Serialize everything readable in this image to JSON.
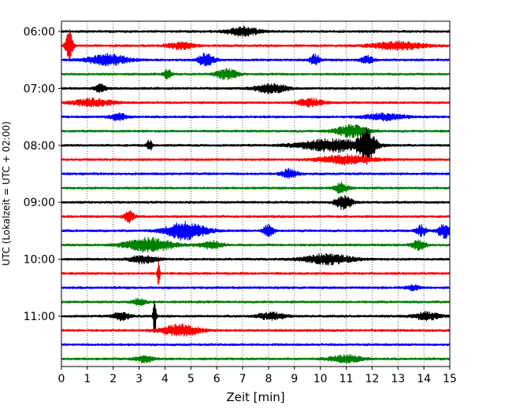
{
  "chart_data": {
    "type": "line",
    "subtype": "helicorder",
    "xlabel": "Zeit  [min]",
    "ylabel": "UTC (Lokalzeit = UTC + 02:00)",
    "xlim": [
      0,
      15
    ],
    "x_ticks": [
      0,
      1,
      2,
      3,
      4,
      5,
      6,
      7,
      8,
      9,
      10,
      11,
      12,
      13,
      14,
      15
    ],
    "x_grid": true,
    "x_grid_style": "dotted",
    "y_tick_labels": [
      "06:00",
      "07:00",
      "08:00",
      "09:00",
      "10:00",
      "11:00"
    ],
    "trace_interval_min": 15,
    "trace_colors": [
      "#000000",
      "#ff0000",
      "#0000ff",
      "#008000"
    ],
    "traces": [
      {
        "start": "06:00",
        "color": "#000000",
        "events": [
          [
            7.0,
            0.35,
            1.2
          ]
        ]
      },
      {
        "start": "06:15",
        "color": "#ff0000",
        "events": [
          [
            0.3,
            1.4,
            0.25
          ],
          [
            13.0,
            0.3,
            2.0
          ],
          [
            4.6,
            0.25,
            1.0
          ]
        ]
      },
      {
        "start": "06:30",
        "color": "#0000ff",
        "events": [
          [
            1.8,
            0.45,
            1.5
          ],
          [
            5.6,
            0.55,
            0.6
          ],
          [
            9.8,
            0.4,
            0.4
          ],
          [
            11.8,
            0.3,
            0.5
          ]
        ]
      },
      {
        "start": "06:45",
        "color": "#008000",
        "events": [
          [
            4.1,
            0.4,
            0.3
          ],
          [
            6.4,
            0.4,
            0.8
          ]
        ]
      },
      {
        "start": "07:00",
        "color": "#000000",
        "events": [
          [
            1.5,
            0.35,
            0.4
          ],
          [
            8.1,
            0.35,
            1.2
          ]
        ]
      },
      {
        "start": "07:15",
        "color": "#ff0000",
        "events": [
          [
            1.2,
            0.3,
            1.5
          ],
          [
            9.6,
            0.3,
            1.0
          ]
        ]
      },
      {
        "start": "07:30",
        "color": "#0000ff",
        "events": [
          [
            2.2,
            0.3,
            0.6
          ],
          [
            12.5,
            0.25,
            1.5
          ]
        ]
      },
      {
        "start": "07:45",
        "color": "#008000",
        "events": [
          [
            11.2,
            0.45,
            1.2
          ]
        ]
      },
      {
        "start": "08:00",
        "color": "#000000",
        "events": [
          [
            3.4,
            0.45,
            0.2
          ],
          [
            10.5,
            0.5,
            2.5
          ],
          [
            11.8,
            1.3,
            0.6
          ]
        ]
      },
      {
        "start": "08:15",
        "color": "#ff0000",
        "events": [
          [
            11.0,
            0.35,
            2.0
          ]
        ]
      },
      {
        "start": "08:30",
        "color": "#0000ff",
        "events": [
          [
            8.8,
            0.35,
            0.6
          ]
        ]
      },
      {
        "start": "08:45",
        "color": "#008000",
        "events": [
          [
            10.8,
            0.45,
            0.5
          ]
        ]
      },
      {
        "start": "09:00",
        "color": "#000000",
        "events": [
          [
            10.9,
            0.55,
            0.6
          ]
        ]
      },
      {
        "start": "09:15",
        "color": "#ff0000",
        "events": [
          [
            2.6,
            0.45,
            0.4
          ]
        ]
      },
      {
        "start": "09:30",
        "color": "#0000ff",
        "events": [
          [
            4.8,
            0.7,
            1.5
          ],
          [
            8.0,
            0.5,
            0.4
          ],
          [
            14.8,
            0.6,
            0.5
          ],
          [
            13.9,
            0.4,
            0.4
          ]
        ]
      },
      {
        "start": "09:45",
        "color": "#008000",
        "events": [
          [
            3.4,
            0.55,
            1.8
          ],
          [
            5.8,
            0.3,
            0.8
          ],
          [
            13.8,
            0.4,
            0.5
          ]
        ]
      },
      {
        "start": "10:00",
        "color": "#000000",
        "events": [
          [
            3.2,
            0.3,
            1.0
          ],
          [
            10.3,
            0.4,
            1.8
          ]
        ]
      },
      {
        "start": "10:15",
        "color": "#ff0000",
        "events": [
          [
            3.75,
            1.0,
            0.1
          ]
        ]
      },
      {
        "start": "10:30",
        "color": "#0000ff",
        "events": [
          [
            13.6,
            0.2,
            0.5
          ]
        ]
      },
      {
        "start": "10:45",
        "color": "#008000",
        "events": [
          [
            3.0,
            0.25,
            0.5
          ]
        ]
      },
      {
        "start": "11:00",
        "color": "#000000",
        "events": [
          [
            3.6,
            1.5,
            0.12
          ],
          [
            2.3,
            0.35,
            0.6
          ],
          [
            8.1,
            0.3,
            1.0
          ],
          [
            14.1,
            0.3,
            1.0
          ]
        ]
      },
      {
        "start": "11:15",
        "color": "#ff0000",
        "events": [
          [
            4.6,
            0.45,
            1.5
          ]
        ]
      },
      {
        "start": "11:30",
        "color": "#0000ff",
        "events": []
      },
      {
        "start": "11:45",
        "color": "#008000",
        "events": [
          [
            3.2,
            0.3,
            0.6
          ],
          [
            11.0,
            0.3,
            1.2
          ]
        ]
      }
    ]
  }
}
